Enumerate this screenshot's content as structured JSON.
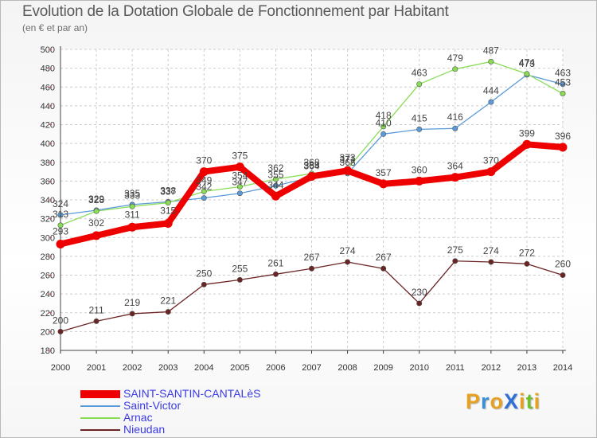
{
  "title": "Evolution de la Dotation Globale de Fonctionnement par Habitant",
  "subtitle": "(en € et par an)",
  "brand": {
    "text": "ProXiti",
    "letters": [
      "P",
      "r",
      "o",
      "X",
      "i",
      "t",
      "i"
    ],
    "colors": [
      "#e8a020",
      "#3b8fd8",
      "#e8a020",
      "#2e6fd8",
      "#e8a020",
      "#6fbf2f",
      "#e8a020"
    ]
  },
  "chart_data": {
    "type": "line",
    "x": [
      2000,
      2001,
      2002,
      2003,
      2004,
      2005,
      2006,
      2007,
      2008,
      2009,
      2010,
      2011,
      2012,
      2013,
      2014
    ],
    "ylim": [
      180,
      500
    ],
    "yticks": [
      180,
      200,
      220,
      240,
      260,
      280,
      300,
      320,
      340,
      360,
      380,
      400,
      420,
      440,
      460,
      480,
      500
    ],
    "grid": true,
    "legend": "bottom-left",
    "series": [
      {
        "name": "SAINT-SANTIN-CANTALèS",
        "color": "#ee0000",
        "values": [
          293,
          302,
          311,
          315,
          370,
          375,
          344,
          365,
          371,
          357,
          360,
          364,
          370,
          399,
          396
        ]
      },
      {
        "name": "Saint-Victor",
        "color": "#5a9ad8",
        "values": [
          324,
          329,
          335,
          338,
          342,
          347,
          355,
          364,
          368,
          410,
          415,
          416,
          444,
          473,
          463
        ]
      },
      {
        "name": "Arnac",
        "color": "#88dd55",
        "values": [
          313,
          328,
          333,
          337,
          349,
          354,
          362,
          368,
          373,
          418,
          463,
          479,
          487,
          474,
          453
        ]
      },
      {
        "name": "Nieudan",
        "color": "#6b2424",
        "values": [
          200,
          211,
          219,
          221,
          250,
          255,
          261,
          267,
          274,
          267,
          230,
          275,
          274,
          272,
          260
        ]
      }
    ]
  }
}
